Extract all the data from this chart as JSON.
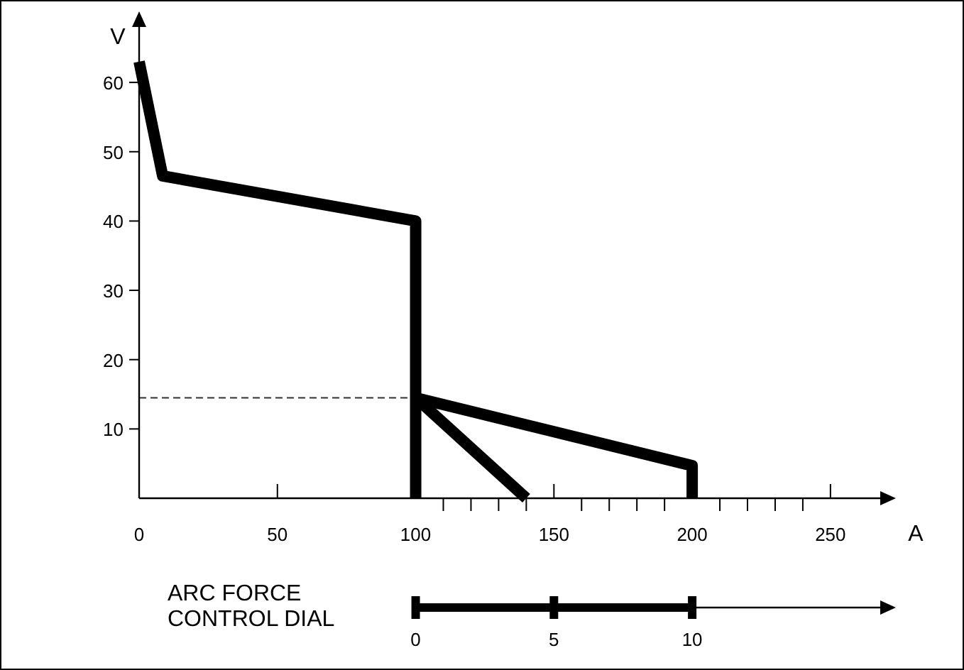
{
  "chart_data": {
    "type": "line",
    "xlabel": "A",
    "ylabel": "V",
    "x2label": "ARC FORCE\nCONTROL DIAL",
    "xlim": [
      0,
      268
    ],
    "ylim": [
      0,
      68
    ],
    "xticks": [
      0,
      50,
      100,
      {
        "value": 110,
        "label": null
      },
      {
        "value": 120,
        "label": null
      },
      {
        "value": 130,
        "label": null
      },
      {
        "value": 140,
        "label": null
      },
      150,
      {
        "value": 160,
        "label": null
      },
      {
        "value": 170,
        "label": null
      },
      {
        "value": 180,
        "label": null
      },
      {
        "value": 190,
        "label": null
      },
      200,
      {
        "value": 210,
        "label": null
      },
      {
        "value": 220,
        "label": null
      },
      {
        "value": 230,
        "label": null
      },
      {
        "value": 240,
        "label": null
      },
      250
    ],
    "yticks": [
      10,
      20,
      30,
      40,
      50,
      60
    ],
    "x2lim": [
      -10,
      16.8
    ],
    "x2ticks": [
      0,
      5,
      10
    ],
    "series": [
      {
        "color": "#000000",
        "x": [
          0,
          8.5,
          100,
          100
        ],
        "values": [
          63,
          46.5,
          40,
          0
        ]
      },
      {
        "color": "#000000",
        "x": [
          100,
          200,
          200
        ],
        "values": [
          14.5,
          4.7,
          0
        ]
      },
      {
        "color": "#000000",
        "x": [
          100,
          140
        ],
        "values": [
          14.5,
          0
        ]
      }
    ],
    "ref_lines": [
      {
        "axis": "y",
        "value": 14.5,
        "color": "#333333",
        "line_style": "dashed"
      }
    ],
    "grid": false,
    "marker": "none",
    "line_style": "solid"
  }
}
